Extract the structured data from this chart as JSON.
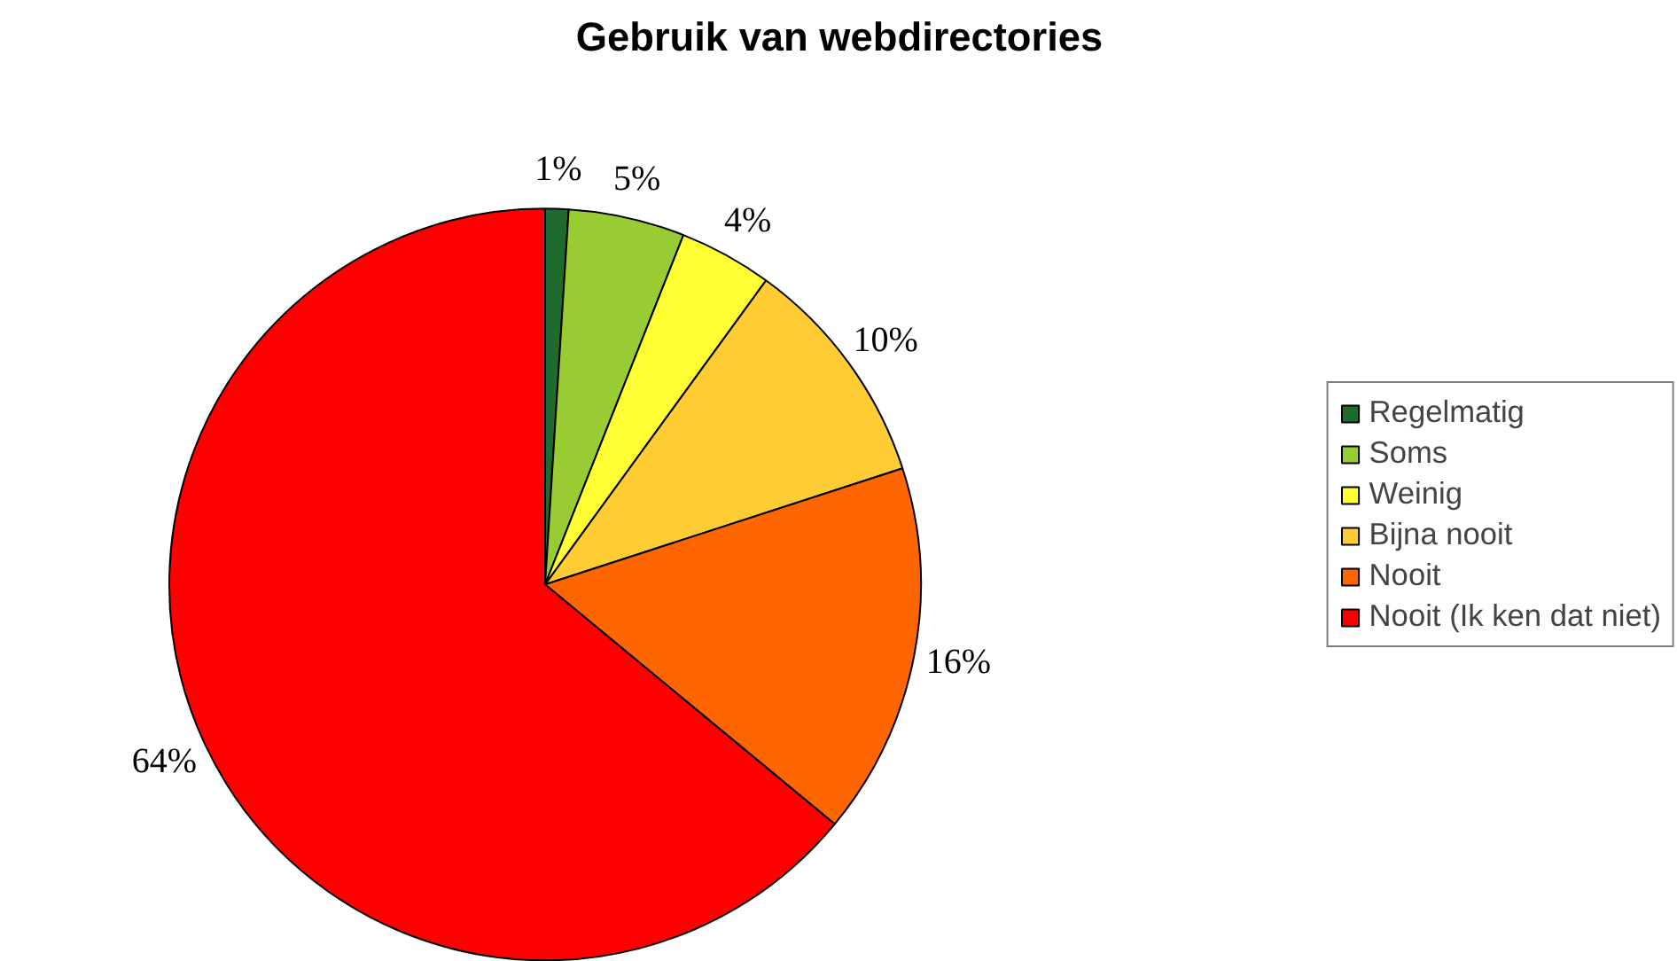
{
  "chart_data": {
    "type": "pie",
    "title": "Gebruik van webdirectories",
    "categories": [
      "Regelmatig",
      "Soms",
      "Weinig",
      "Bijna nooit",
      "Nooit",
      "Nooit (Ik ken dat niet)"
    ],
    "values": [
      1,
      5,
      4,
      10,
      16,
      64
    ],
    "colors": [
      "#1f6b2e",
      "#99cc33",
      "#ffff33",
      "#ffcc33",
      "#ff6600",
      "#ff0000"
    ],
    "value_labels": [
      "1%",
      "5%",
      "4%",
      "10%",
      "16%",
      "64%"
    ],
    "legend": "right"
  }
}
